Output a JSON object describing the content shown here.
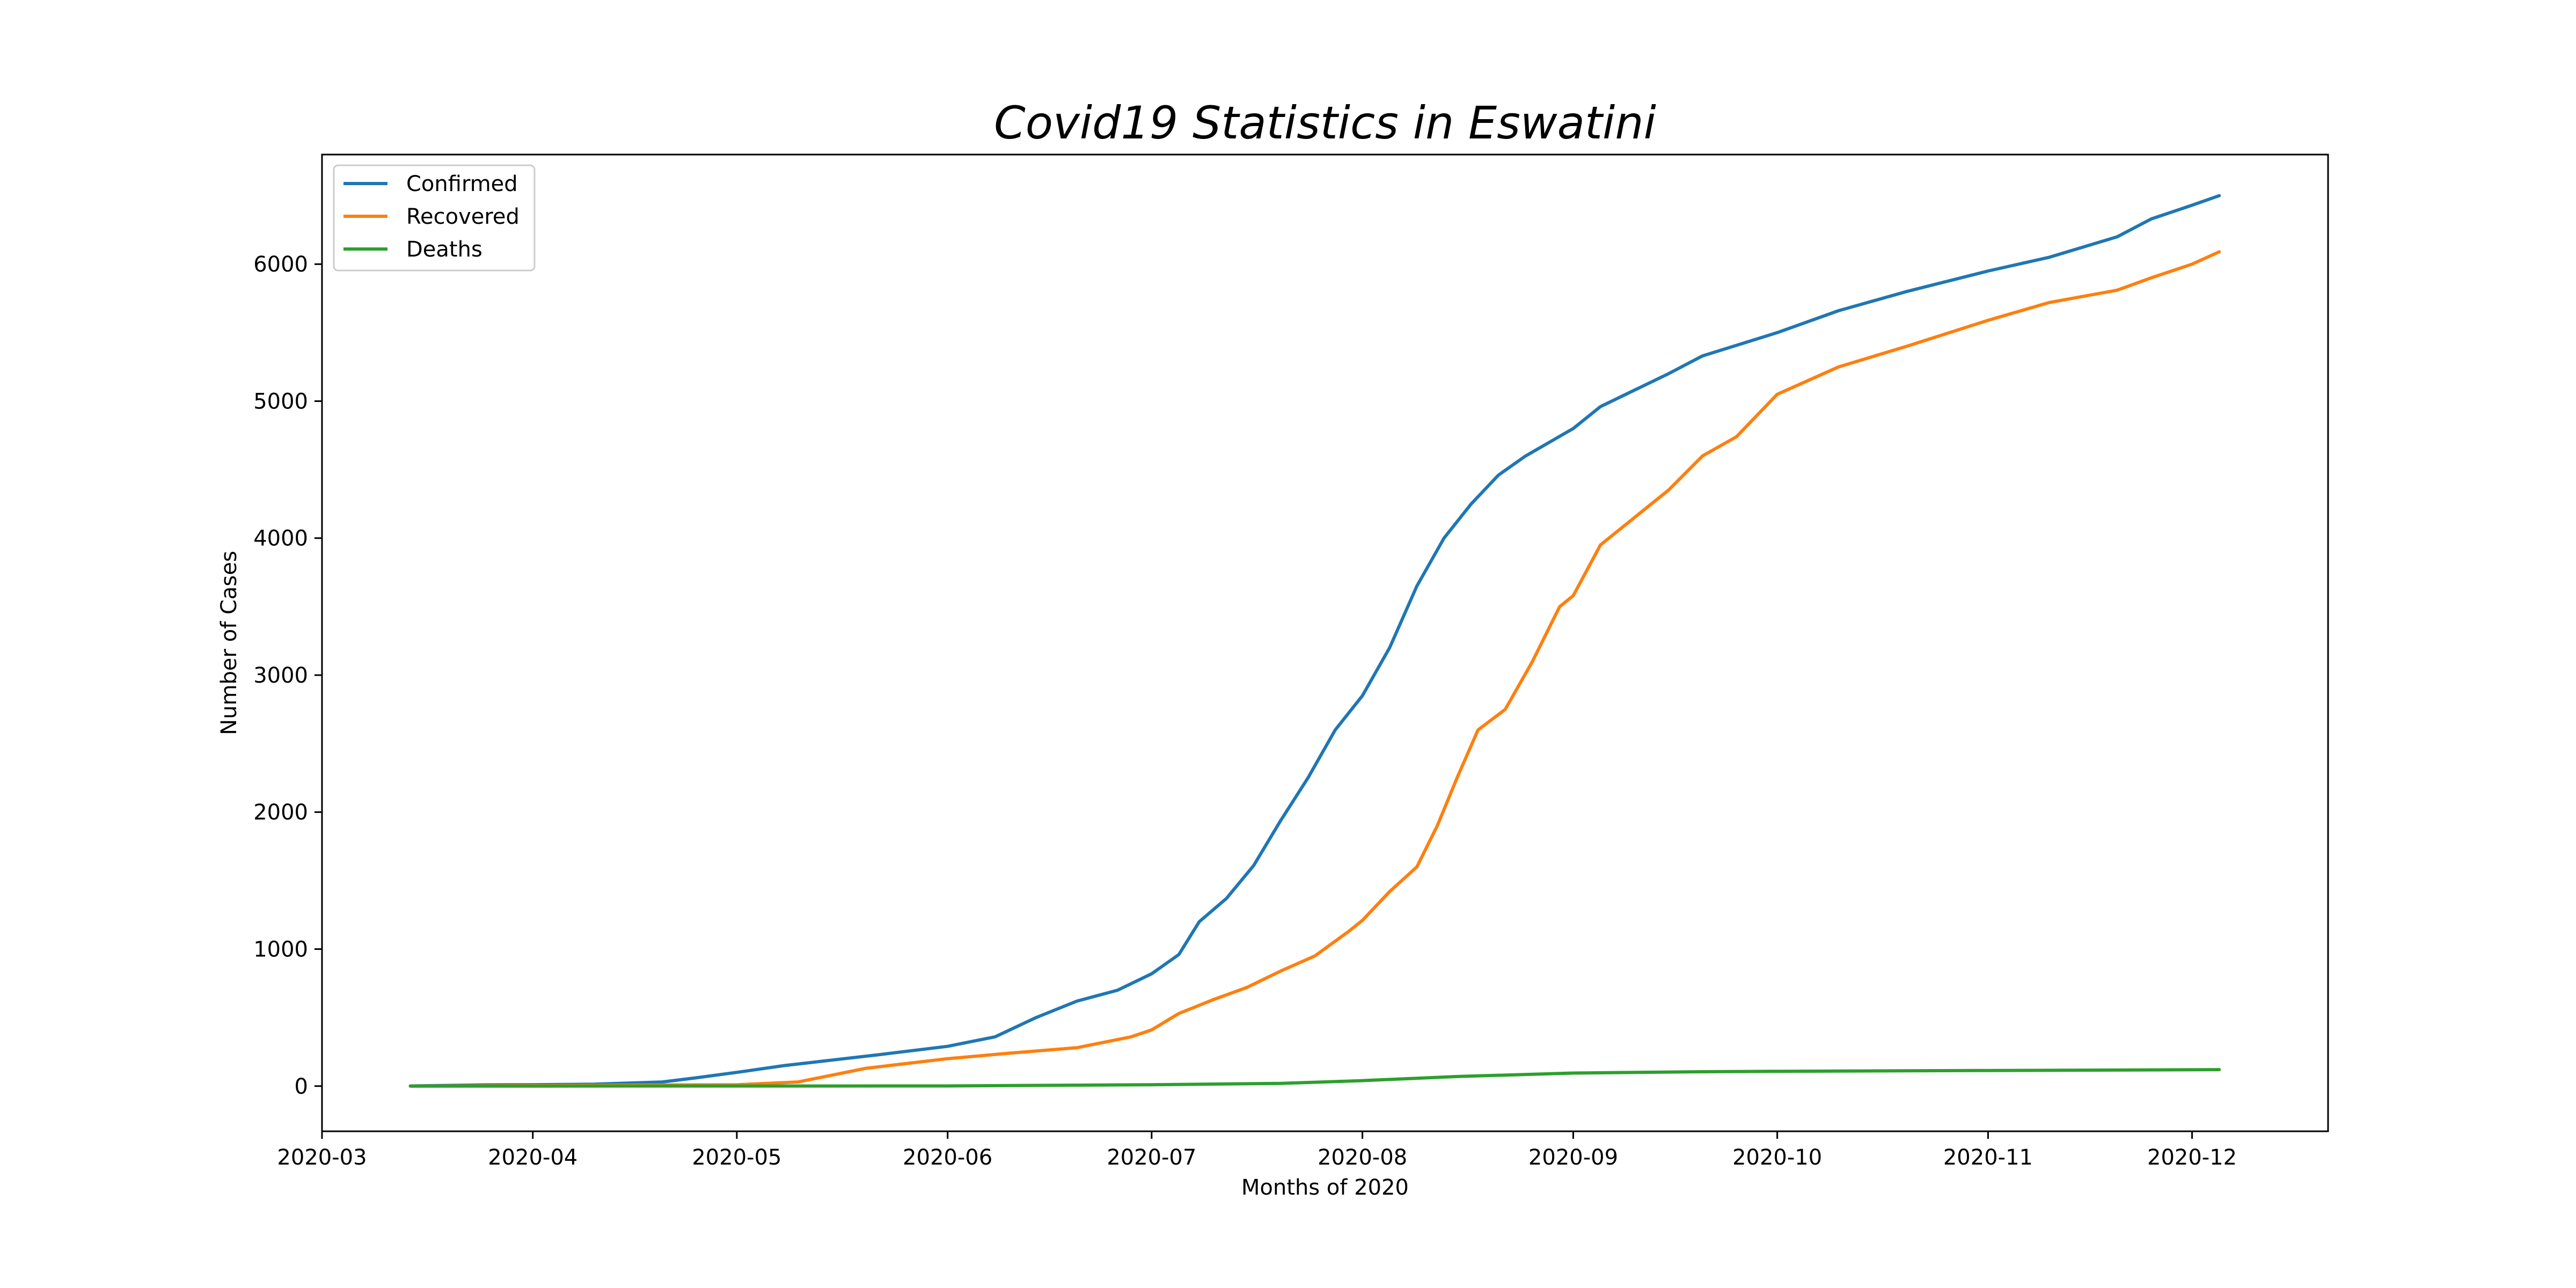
{
  "chart_data": {
    "type": "line",
    "title": "Covid19 Statistics in Eswatini",
    "xlabel": "Months of 2020",
    "ylabel": "Number of Cases",
    "xlim": [
      "2020-03-01",
      "2020-12-21"
    ],
    "ylim": [
      -330,
      6800
    ],
    "x_ticks": [
      {
        "date": "2020-03-01",
        "label": "2020-03"
      },
      {
        "date": "2020-04-01",
        "label": "2020-04"
      },
      {
        "date": "2020-05-01",
        "label": "2020-05"
      },
      {
        "date": "2020-06-01",
        "label": "2020-06"
      },
      {
        "date": "2020-07-01",
        "label": "2020-07"
      },
      {
        "date": "2020-08-01",
        "label": "2020-08"
      },
      {
        "date": "2020-09-01",
        "label": "2020-09"
      },
      {
        "date": "2020-10-01",
        "label": "2020-10"
      },
      {
        "date": "2020-11-01",
        "label": "2020-11"
      },
      {
        "date": "2020-12-01",
        "label": "2020-12"
      }
    ],
    "y_ticks": [
      {
        "value": 0,
        "label": "0"
      },
      {
        "value": 1000,
        "label": "1000"
      },
      {
        "value": 2000,
        "label": "2000"
      },
      {
        "value": 3000,
        "label": "3000"
      },
      {
        "value": 4000,
        "label": "4000"
      },
      {
        "value": 5000,
        "label": "5000"
      },
      {
        "value": 6000,
        "label": "6000"
      }
    ],
    "grid": false,
    "legend_position": "top-left",
    "series": [
      {
        "name": "Confirmed",
        "color": "#1f77b4",
        "x": [
          "2020-03-14",
          "2020-03-25",
          "2020-04-01",
          "2020-04-10",
          "2020-04-20",
          "2020-04-25",
          "2020-05-01",
          "2020-05-08",
          "2020-05-15",
          "2020-05-22",
          "2020-06-01",
          "2020-06-08",
          "2020-06-14",
          "2020-06-20",
          "2020-06-26",
          "2020-07-01",
          "2020-07-05",
          "2020-07-08",
          "2020-07-12",
          "2020-07-16",
          "2020-07-20",
          "2020-07-24",
          "2020-07-28",
          "2020-08-01",
          "2020-08-05",
          "2020-08-09",
          "2020-08-13",
          "2020-08-17",
          "2020-08-21",
          "2020-08-25",
          "2020-09-01",
          "2020-09-05",
          "2020-09-10",
          "2020-09-15",
          "2020-09-20",
          "2020-10-01",
          "2020-10-10",
          "2020-10-20",
          "2020-11-01",
          "2020-11-10",
          "2020-11-20",
          "2020-11-25",
          "2020-12-01",
          "2020-12-05"
        ],
        "values": [
          1,
          9,
          10,
          14,
          30,
          60,
          100,
          150,
          190,
          230,
          290,
          360,
          500,
          620,
          700,
          820,
          960,
          1200,
          1370,
          1610,
          1940,
          2250,
          2600,
          2850,
          3200,
          3650,
          4000,
          4250,
          4460,
          4600,
          4800,
          4960,
          5080,
          5200,
          5330,
          5500,
          5660,
          5800,
          5950,
          6050,
          6200,
          6330,
          6430,
          6500
        ]
      },
      {
        "name": "Recovered",
        "color": "#ff7f0e",
        "x": [
          "2020-03-14",
          "2020-05-01",
          "2020-05-10",
          "2020-05-20",
          "2020-06-01",
          "2020-06-10",
          "2020-06-20",
          "2020-06-28",
          "2020-07-01",
          "2020-07-05",
          "2020-07-10",
          "2020-07-15",
          "2020-07-20",
          "2020-07-25",
          "2020-07-30",
          "2020-08-01",
          "2020-08-05",
          "2020-08-09",
          "2020-08-12",
          "2020-08-15",
          "2020-08-18",
          "2020-08-22",
          "2020-08-26",
          "2020-08-30",
          "2020-09-01",
          "2020-09-05",
          "2020-09-10",
          "2020-09-15",
          "2020-09-20",
          "2020-09-25",
          "2020-10-01",
          "2020-10-10",
          "2020-10-20",
          "2020-11-01",
          "2020-11-10",
          "2020-11-20",
          "2020-11-25",
          "2020-12-01",
          "2020-12-05"
        ],
        "values": [
          0,
          10,
          30,
          130,
          200,
          240,
          280,
          360,
          410,
          530,
          630,
          720,
          840,
          950,
          1130,
          1210,
          1420,
          1600,
          1900,
          2260,
          2600,
          2750,
          3100,
          3500,
          3580,
          3950,
          4150,
          4350,
          4600,
          4740,
          5050,
          5250,
          5400,
          5590,
          5720,
          5810,
          5900,
          6000,
          6090
        ]
      },
      {
        "name": "Deaths",
        "color": "#2ca02c",
        "x": [
          "2020-03-14",
          "2020-06-01",
          "2020-07-01",
          "2020-07-20",
          "2020-08-01",
          "2020-08-15",
          "2020-09-01",
          "2020-09-20",
          "2020-10-01",
          "2020-10-20",
          "2020-11-01",
          "2020-11-20",
          "2020-12-05"
        ],
        "values": [
          0,
          1,
          10,
          20,
          40,
          70,
          95,
          105,
          108,
          112,
          114,
          117,
          120
        ]
      }
    ]
  }
}
